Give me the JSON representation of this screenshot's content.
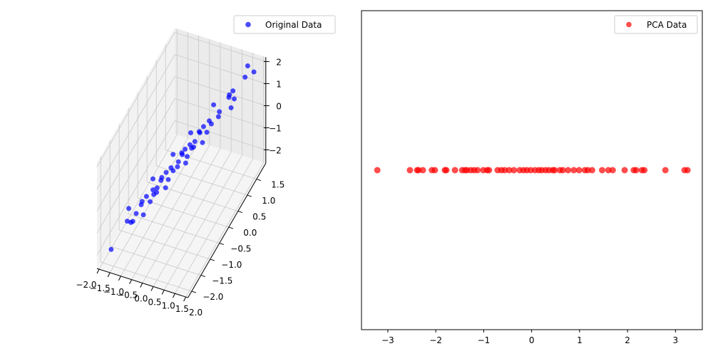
{
  "chart_data": [
    {
      "type": "scatter",
      "projection": "3d",
      "legend": {
        "label": "Original Data",
        "placement": "top-right"
      },
      "color": "#0000ff",
      "alpha": 0.7,
      "xlim": [
        -2.1,
        2.1
      ],
      "ylim": [
        -2.2,
        2.0
      ],
      "zlim": [
        -2.6,
        2.2
      ],
      "xticks": [
        -2.0,
        -1.5,
        -1.0,
        -0.5,
        0.0,
        0.5,
        1.0,
        1.5,
        2.0
      ],
      "xtick_labels": [
        "−2.0",
        "−1.5",
        "−1.0",
        "−0.5",
        "0.0",
        "0.5",
        "1.0",
        "1.5",
        "2.0"
      ],
      "yticks": [
        -2.0,
        -1.5,
        -1.0,
        -0.5,
        0.0,
        0.5,
        1.0,
        1.5
      ],
      "ytick_labels": [
        "−2.0",
        "−1.5",
        "−1.0",
        "−0.5",
        "0.0",
        "0.5",
        "1.0",
        "1.5"
      ],
      "zticks": [
        -2,
        -1,
        0,
        1,
        2
      ],
      "ztick_labels": [
        "−2",
        "−1",
        "0",
        "1",
        "2"
      ],
      "grid": true,
      "x": [
        -1.47,
        -1.6,
        -1.21,
        -1.7,
        -1.0,
        -1.24,
        -0.76,
        -1.3,
        -0.93,
        -1.03,
        -0.5,
        -0.96,
        -0.64,
        -1.1,
        -0.41,
        -0.72,
        -0.21,
        -0.81,
        -0.44,
        -0.54,
        -0.05,
        -0.51,
        -0.16,
        -0.6,
        0.11,
        -0.19,
        0.29,
        -0.31,
        0.09,
        -0.07,
        0.42,
        -0.04,
        0.3,
        -0.16,
        0.51,
        0.22,
        0.71,
        0.12,
        0.53,
        0.39,
        0.91,
        0.44,
        0.79,
        0.41,
        1.13,
        0.83,
        1.42,
        0.87,
        1.25,
        1.12,
        1.59,
        1.33,
        1.85,
        1.39
      ],
      "y": [
        -2.17,
        -1.15,
        -1.41,
        -0.95,
        -1.55,
        -1.09,
        -1.26,
        -0.7,
        -1.18,
        -0.78,
        -1.2,
        -0.51,
        -0.84,
        -0.35,
        -0.96,
        -0.57,
        -0.71,
        -0.21,
        -0.69,
        -0.29,
        -0.75,
        -0.06,
        -0.36,
        0.15,
        -0.44,
        -0.04,
        -0.21,
        0.29,
        -0.16,
        0.18,
        -0.28,
        0.41,
        0.1,
        0.59,
        -0.04,
        0.37,
        0.21,
        0.72,
        0.28,
        0.64,
        0.21,
        0.89,
        0.59,
        1.16,
        0.58,
        0.98,
        0.92,
        1.47,
        1.0,
        1.37,
        0.89,
        1.78,
        1.65,
        1.85
      ],
      "z": [
        -1.58,
        -1.82,
        -1.38,
        -1.57,
        -1.06,
        -1.45,
        -1.11,
        -1.49,
        -0.82,
        -1.06,
        -0.52,
        -1.13,
        -0.76,
        -0.91,
        -0.42,
        -0.88,
        -0.51,
        -0.96,
        -0.28,
        -0.53,
        -0.03,
        -0.64,
        -0.23,
        -0.37,
        0.15,
        -0.3,
        0.04,
        -0.41,
        0.29,
        -0.01,
        0.48,
        -0.13,
        0.27,
        0.11,
        0.59,
        0.15,
        0.49,
        0.06,
        0.78,
        0.49,
        1.02,
        0.4,
        0.81,
        0.73,
        1.26,
        0.81,
        1.26,
        0.88,
        1.56,
        1.28,
        1.76,
        1.37,
        1.96,
        1.8
      ]
    },
    {
      "type": "scatter",
      "legend": {
        "label": "PCA Data",
        "placement": "top-right"
      },
      "color": "#ff0000",
      "alpha": 0.7,
      "xlim": [
        -3.55,
        3.56
      ],
      "ylim": [
        -0.055,
        0.055
      ],
      "xticks": [
        -3,
        -2,
        -1,
        0,
        1,
        2,
        3
      ],
      "xtick_labels": [
        "−3",
        "−2",
        "−1",
        "0",
        "1",
        "2",
        "3"
      ],
      "grid": false,
      "x": [
        -3.22,
        -2.54,
        -2.39,
        -2.36,
        -2.27,
        -2.08,
        -2.02,
        -1.81,
        -1.78,
        -1.6,
        -1.45,
        -1.39,
        -1.35,
        -1.27,
        -1.2,
        -1.13,
        -1.01,
        -0.93,
        -0.89,
        -0.71,
        -0.63,
        -0.56,
        -0.47,
        -0.37,
        -0.25,
        -0.17,
        -0.1,
        -0.02,
        0.07,
        0.15,
        0.21,
        0.29,
        0.36,
        0.44,
        0.48,
        0.59,
        0.65,
        0.76,
        0.88,
        0.99,
        1.11,
        1.17,
        1.26,
        1.47,
        1.6,
        1.69,
        1.94,
        2.13,
        2.18,
        2.3,
        2.35,
        2.79,
        3.19,
        3.25
      ],
      "y": 0
    }
  ]
}
